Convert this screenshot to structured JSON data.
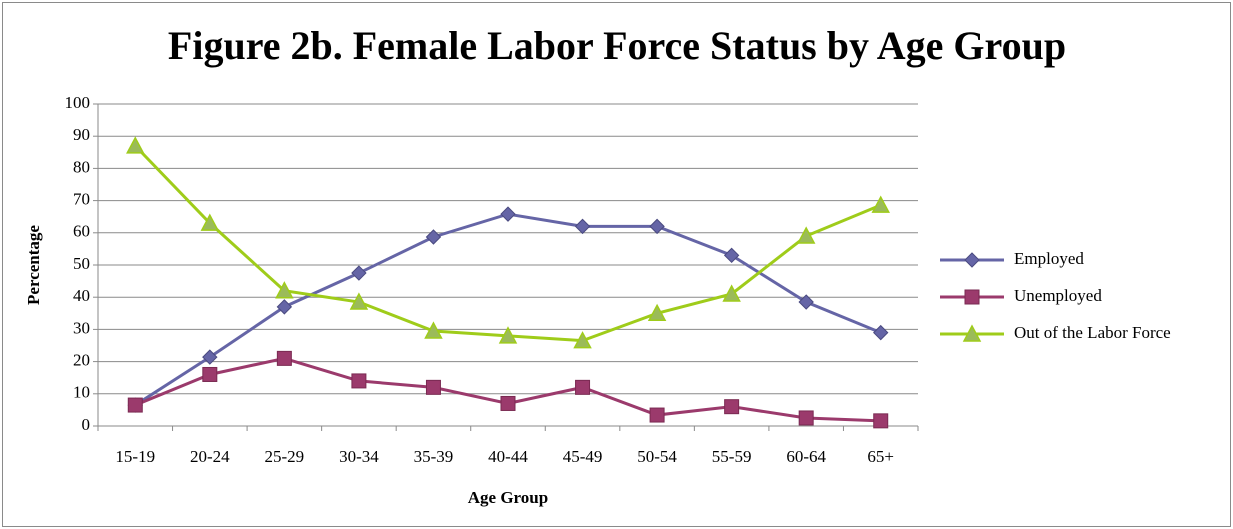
{
  "chart_data": {
    "type": "line",
    "title": "Figure 2b. Female Labor Force Status by Age Group",
    "x_label": "Age Group",
    "y_label": "Percentage",
    "categories": [
      "15-19",
      "20-24",
      "25-29",
      "30-34",
      "35-39",
      "40-44",
      "45-49",
      "50-54",
      "55-59",
      "60-64",
      "65+"
    ],
    "series": [
      {
        "name": "Employed",
        "color": "#6565a6",
        "marker": "diamond",
        "values": [
          6.5,
          21.4,
          37,
          47.5,
          58.7,
          65.8,
          62,
          62,
          53,
          38.5,
          29
        ]
      },
      {
        "name": "Unemployed",
        "color": "#9b3a6c",
        "marker": "square",
        "values": [
          6.5,
          16,
          21,
          14,
          12,
          7,
          12,
          3.4,
          6,
          2.5,
          1.6
        ]
      },
      {
        "name": "Out of the Labor Force",
        "color": "#9fcc1a",
        "marker": "triangle",
        "values": [
          87,
          63,
          42,
          38.5,
          29.5,
          28,
          26.5,
          35,
          41,
          59,
          68.6
        ]
      }
    ],
    "ylim": [
      0,
      100
    ],
    "yticks": [
      0,
      10,
      20,
      30,
      40,
      50,
      60,
      70,
      80,
      90,
      100
    ],
    "grid": true,
    "legend": "right"
  }
}
